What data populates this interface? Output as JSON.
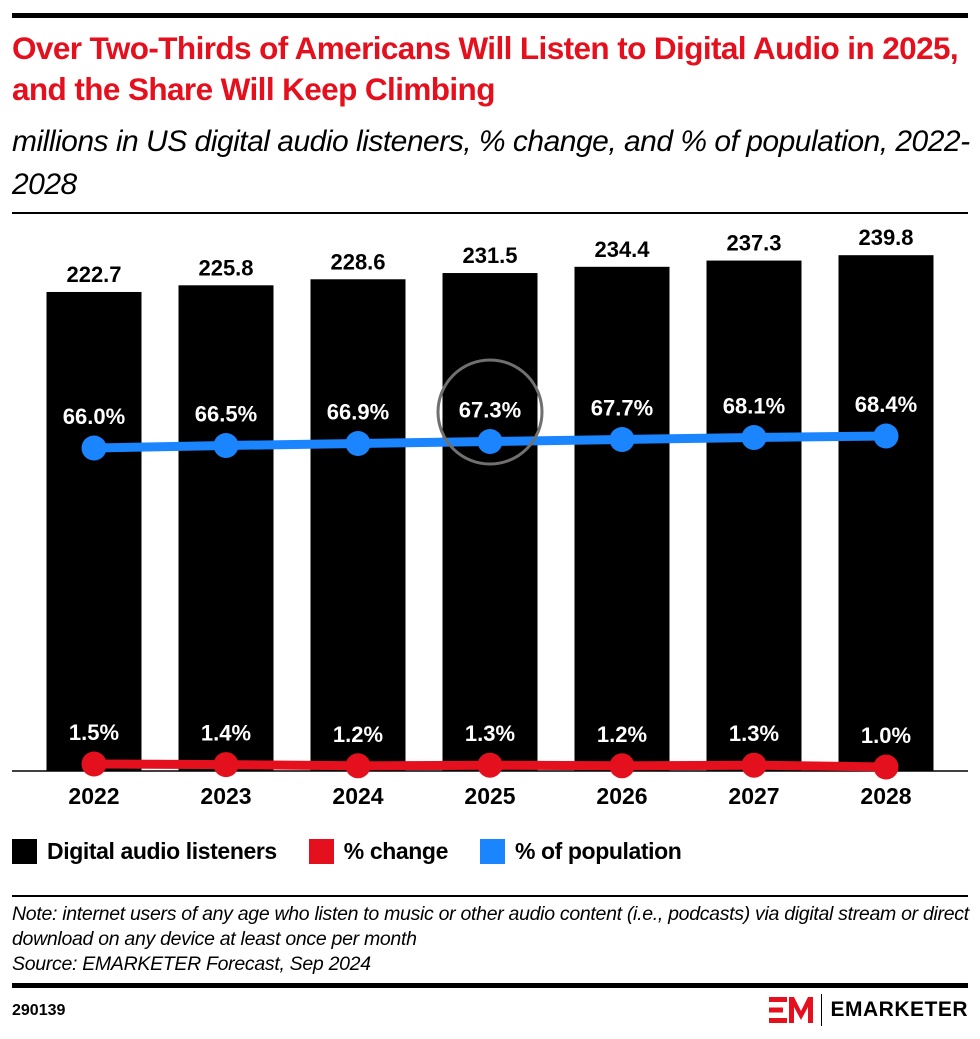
{
  "title": "Over Two-Thirds of Americans Will Listen to Digital Audio in 2025, and the Share Will Keep Climbing",
  "subtitle": "millions in US digital audio listeners, % change, and % of population, 2022-2028",
  "chart_data": {
    "type": "bar",
    "categories": [
      "2022",
      "2023",
      "2024",
      "2025",
      "2026",
      "2027",
      "2028"
    ],
    "series": [
      {
        "name": "Digital audio listeners",
        "type": "bar",
        "color": "#000000",
        "values": [
          222.7,
          225.8,
          228.6,
          231.5,
          234.4,
          237.3,
          239.8
        ],
        "labels": [
          "222.7",
          "225.8",
          "228.6",
          "231.5",
          "234.4",
          "237.3",
          "239.8"
        ]
      },
      {
        "name": "% change",
        "type": "line",
        "color": "#e5101d",
        "values": [
          1.5,
          1.4,
          1.2,
          1.3,
          1.2,
          1.3,
          1.0
        ],
        "labels": [
          "1.5%",
          "1.4%",
          "1.2%",
          "1.3%",
          "1.2%",
          "1.3%",
          "1.0%"
        ]
      },
      {
        "name": "% of population",
        "type": "line",
        "color": "#1a85ff",
        "values": [
          66.0,
          66.5,
          66.9,
          67.3,
          67.7,
          68.1,
          68.4
        ],
        "labels": [
          "66.0%",
          "66.5%",
          "66.9%",
          "67.3%",
          "67.7%",
          "68.1%",
          "68.4%"
        ]
      }
    ],
    "highlight": {
      "category": "2025",
      "series": "% of population",
      "shape": "circle",
      "color": "#707070"
    },
    "grid": false,
    "legend_position": "bottom-left"
  },
  "legend": [
    {
      "label": "Digital audio listeners",
      "color": "#000000"
    },
    {
      "label": "% change",
      "color": "#e5101d"
    },
    {
      "label": "% of population",
      "color": "#1a85ff"
    }
  ],
  "note": "Note: internet users of any age who listen to music or other audio content (i.e., podcasts) via digital stream or direct download on any device at least once per month",
  "source": "Source: EMARKETER Forecast, Sep 2024",
  "chart_id": "290139",
  "brand": {
    "logo_text": "EMARKETER",
    "mark": "EM",
    "color": "#e5101d"
  }
}
